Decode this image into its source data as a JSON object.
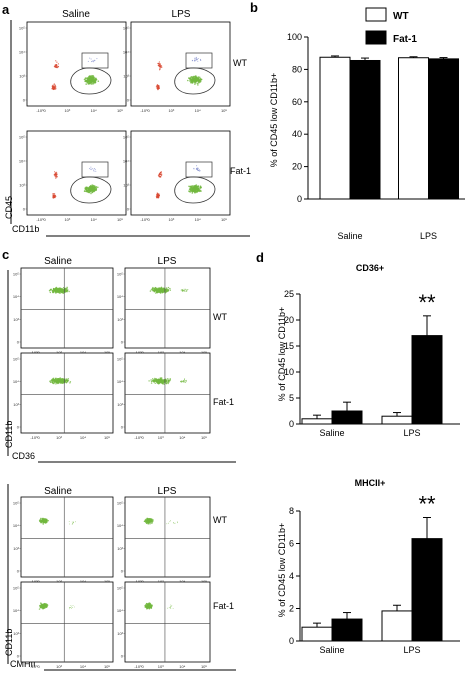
{
  "colors": {
    "wt": "#ffffff",
    "fat1": "#000000",
    "cells": "#72b83e",
    "gate_red": "#d94a33",
    "gate_blue": "#7a86c8"
  },
  "panel_a": {
    "letter": "a",
    "columns": [
      "Saline",
      "LPS"
    ],
    "rows": [
      "WT",
      "Fat-1"
    ],
    "ylabel": "CD45",
    "xlabel": "CD11b",
    "y_ticks": [
      "10⁵",
      "10⁴",
      "10³",
      "0"
    ],
    "x_ticks": [
      "-10³0",
      "10³",
      "10⁴",
      "10⁵"
    ]
  },
  "panel_c": {
    "letter": "c",
    "columns": [
      "Saline",
      "LPS"
    ],
    "top": {
      "rows": [
        "WT",
        "Fat-1"
      ],
      "ylabel": "CD11b",
      "xlabel": "CD36"
    },
    "bottom": {
      "rows": [
        "WT",
        "Fat-1"
      ],
      "ylabel": "CD11b",
      "xlabel": "CMHII"
    },
    "y_ticks": [
      "10⁵",
      "10⁴",
      "10³",
      "0"
    ],
    "x_ticks": [
      "-10³0",
      "10³",
      "10⁴",
      "10⁵"
    ]
  },
  "chart_data": [
    {
      "id": "b",
      "letter": "b",
      "type": "bar",
      "title": "",
      "categories": [
        "Saline",
        "LPS"
      ],
      "series": [
        {
          "name": "WT",
          "values": [
            87.5,
            87.2
          ],
          "errors": [
            0.8,
            0.6
          ]
        },
        {
          "name": "Fat-1",
          "values": [
            85.5,
            86.5
          ],
          "errors": [
            1.5,
            0.8
          ]
        }
      ],
      "ylabel": "% of CD45 low CD11b+",
      "ylim": [
        0,
        100
      ],
      "yticks": [
        0,
        20,
        40,
        60,
        80,
        100
      ],
      "legend": "top-right",
      "grid": false
    },
    {
      "id": "d1",
      "letter": "d",
      "type": "bar",
      "title": "CD36+",
      "categories": [
        "Saline",
        "LPS"
      ],
      "series": [
        {
          "name": "WT",
          "values": [
            1.0,
            1.5
          ],
          "errors": [
            0.7,
            0.7
          ]
        },
        {
          "name": "Fat-1",
          "values": [
            2.5,
            17.0
          ],
          "errors": [
            1.7,
            3.8
          ]
        }
      ],
      "significance": [
        "",
        "**"
      ],
      "ylabel": "% of CD45 low CD11b+",
      "ylim": [
        0,
        25
      ],
      "yticks": [
        0,
        5,
        10,
        15,
        20,
        25
      ],
      "grid": false
    },
    {
      "id": "d2",
      "type": "bar",
      "title": "MHCII+",
      "categories": [
        "Saline",
        "LPS"
      ],
      "series": [
        {
          "name": "WT",
          "values": [
            0.85,
            1.85
          ],
          "errors": [
            0.25,
            0.35
          ]
        },
        {
          "name": "Fat-1",
          "values": [
            1.35,
            6.3
          ],
          "errors": [
            0.4,
            1.3
          ]
        }
      ],
      "significance": [
        "",
        "**"
      ],
      "ylabel": "% of CD45 low CD11b+",
      "ylim": [
        0,
        8
      ],
      "yticks": [
        0,
        2,
        4,
        6,
        8
      ],
      "grid": false
    }
  ]
}
